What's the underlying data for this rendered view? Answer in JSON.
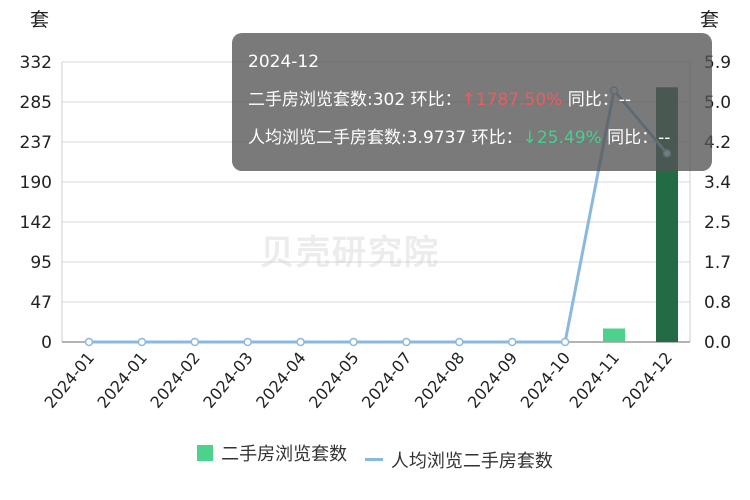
{
  "chart_data": {
    "type": "bar",
    "left_axis_title": "套",
    "right_axis_title": "套",
    "left_ticks": [
      "0",
      "47",
      "95",
      "142",
      "190",
      "237",
      "285",
      "332"
    ],
    "left_max": 332,
    "right_ticks": [
      "0.0",
      "0.8",
      "1.7",
      "2.5",
      "3.4",
      "4.2",
      "5.0",
      "5.9"
    ],
    "right_max": 5.9,
    "categories": [
      "2024-01",
      "2024-01",
      "2024-02",
      "2024-03",
      "2024-04",
      "2024-05",
      "2024-07",
      "2024-08",
      "2024-09",
      "2024-10",
      "2024-11",
      "2024-12"
    ],
    "series": [
      {
        "name": "二手房浏览套数",
        "type": "bar",
        "color": "#4dd18d",
        "highlight_color": "#226b45",
        "values": [
          0,
          0,
          0,
          0,
          0,
          0,
          0,
          0,
          0,
          0,
          16,
          302
        ]
      },
      {
        "name": "人均浏览二手房套数",
        "type": "line",
        "color": "#8ab8e0",
        "values": [
          0,
          0,
          0,
          0,
          0,
          0,
          0,
          0,
          0,
          0,
          5.3,
          3.9737
        ]
      }
    ],
    "highlight_index": 11
  },
  "tooltip": {
    "date": "2024-12",
    "row1_prefix": "二手房浏览套数:302 环比：",
    "row1_change": "↑1787.50%",
    "row1_suffix": " 同比：--",
    "row2_prefix": "人均浏览二手房套数:3.9737 环比：",
    "row2_change": "↓25.49%",
    "row2_suffix": " 同比：--"
  },
  "legend": {
    "bar_label": "二手房浏览套数",
    "line_label": "人均浏览二手房套数"
  }
}
